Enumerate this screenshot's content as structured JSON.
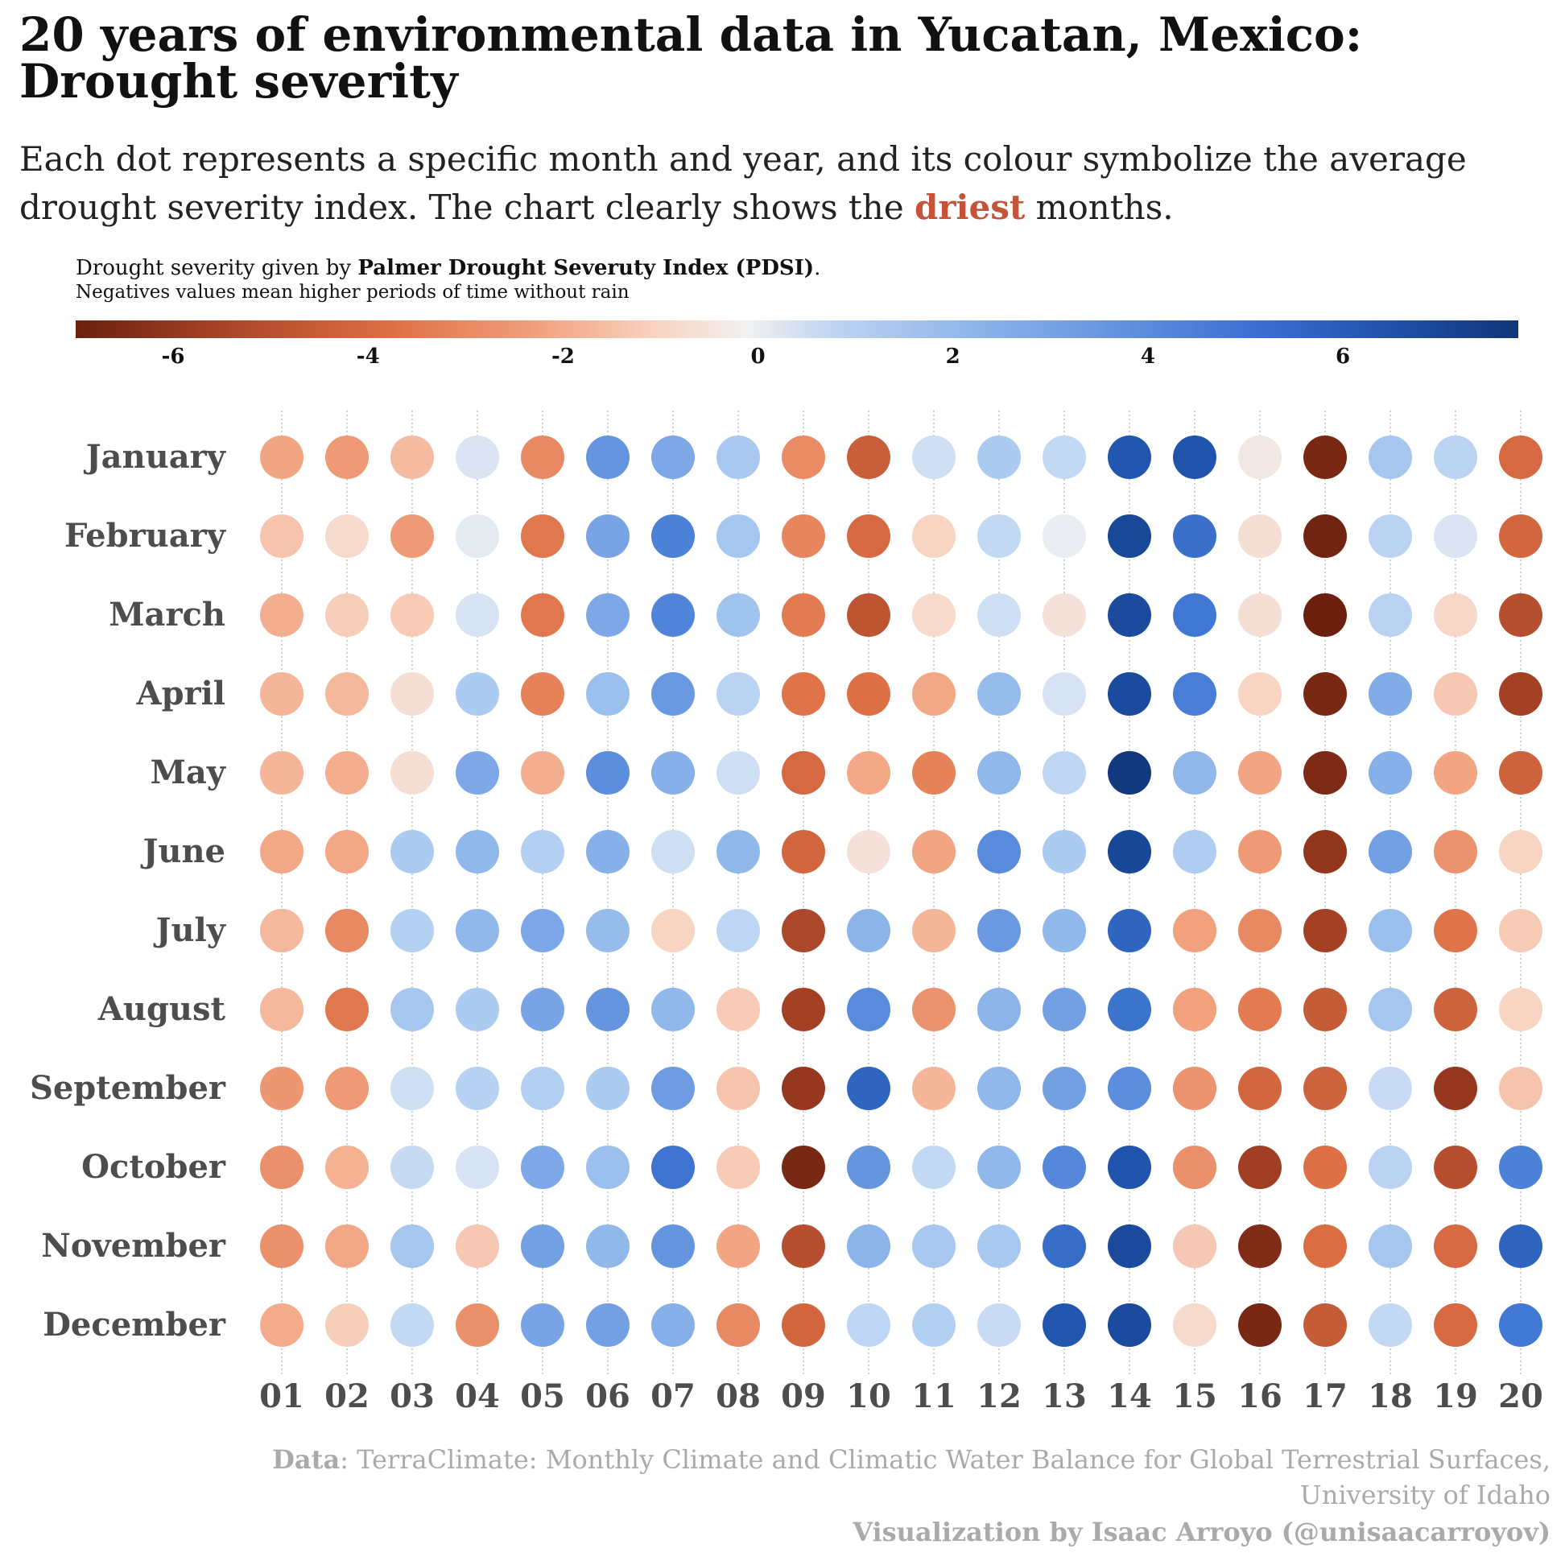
{
  "title_line1": "20 years of environmental data in Yucatan, Mexico:",
  "title_line2": "Drought severity",
  "subtitle_line1": "Each dot represents a specific month and year, and its colour symbolize the average",
  "subtitle_line2_pre": "drought severity index. The chart clearly shows the ",
  "subtitle_highlight": "driest",
  "subtitle_line2_post": " months.",
  "legend": {
    "title_pre": "Drought severity given by ",
    "title_bold": "Palmer Drought Severuty Index (PDSI)",
    "title_post": ".",
    "subtitle": "Negatives values mean higher periods of time without rain",
    "ticks": [
      "-6",
      "-4",
      "-2",
      "0",
      "2",
      "4",
      "6"
    ],
    "tick_values": [
      -6,
      -4,
      -2,
      0,
      2,
      4,
      6
    ],
    "range": [
      -7,
      7.8
    ]
  },
  "source_label": "Data",
  "source_text": ": TerraClimate: Monthly Climate and Climatic Water Balance for Global Terrestrial Surfaces,",
  "source_line2": "University of Idaho",
  "credit": "Visualization by Isaac Arroyo (@unisaacarroyov)",
  "colors": {
    "dry_extreme": "#6b200f",
    "neutral": "#f1f1f1",
    "wet_extreme": "#10357a",
    "highlight": "#c4533a",
    "label_gray": "#4d4d4d",
    "source_gray": "#aaaaaa"
  },
  "chart_data": {
    "type": "heatmap",
    "x": [
      "01",
      "02",
      "03",
      "04",
      "05",
      "06",
      "07",
      "08",
      "09",
      "10",
      "11",
      "12",
      "13",
      "14",
      "15",
      "16",
      "17",
      "18",
      "19",
      "20"
    ],
    "y": [
      "January",
      "February",
      "March",
      "April",
      "May",
      "June",
      "July",
      "August",
      "September",
      "October",
      "November",
      "December"
    ],
    "value_label": "PDSI",
    "values": [
      [
        -2.5,
        -2.8,
        -1.8,
        0.8,
        -3.3,
        3.7,
        3.2,
        2.3,
        -3.2,
        -4.5,
        1.2,
        2.2,
        1.6,
        5.8,
        5.9,
        -0.3,
        -6.6,
        2.4,
        1.8,
        -4.2
      ],
      [
        -1.5,
        -0.8,
        -2.8,
        0.4,
        -3.8,
        3.3,
        4.3,
        2.4,
        -3.4,
        -4.2,
        -1.0,
        1.6,
        0.2,
        6.6,
        4.9,
        -0.6,
        -6.8,
        1.8,
        0.8,
        -4.3
      ],
      [
        -2.2,
        -1.2,
        -1.3,
        0.9,
        -3.8,
        3.2,
        4.2,
        2.5,
        -3.7,
        -4.8,
        -0.8,
        1.2,
        -0.5,
        6.5,
        4.6,
        -0.6,
        -7.0,
        1.8,
        -0.9,
        -5.0
      ],
      [
        -2.0,
        -1.9,
        -0.6,
        2.2,
        -3.5,
        2.6,
        3.6,
        1.8,
        -3.9,
        -4.0,
        -2.4,
        2.7,
        0.9,
        6.5,
        4.4,
        -1.0,
        -6.6,
        3.1,
        -1.4,
        -5.4
      ],
      [
        -2.0,
        -2.2,
        -0.6,
        3.2,
        -2.2,
        3.9,
        3.0,
        1.2,
        -4.2,
        -2.4,
        -3.5,
        2.8,
        1.7,
        7.6,
        2.8,
        -2.5,
        -6.5,
        3.0,
        -2.5,
        -4.4
      ],
      [
        -2.4,
        -2.4,
        2.2,
        2.8,
        2.0,
        3.0,
        1.2,
        2.8,
        -4.3,
        -0.5,
        -2.5,
        4.0,
        2.2,
        6.7,
        2.1,
        -2.8,
        -5.9,
        3.4,
        -3.0,
        -1.0
      ],
      [
        -1.9,
        -3.3,
        2.0,
        2.8,
        3.2,
        2.7,
        -1.0,
        1.7,
        -5.2,
        2.9,
        -2.0,
        3.6,
        2.8,
        5.3,
        -2.6,
        -3.3,
        -5.4,
        2.6,
        -3.9,
        -1.3
      ],
      [
        -1.9,
        -3.8,
        2.4,
        2.2,
        3.3,
        3.7,
        2.8,
        -1.3,
        -5.4,
        4.0,
        -3.0,
        2.9,
        3.4,
        4.8,
        -2.6,
        -3.7,
        -4.6,
        2.4,
        -4.4,
        -1.0
      ],
      [
        -2.9,
        -2.8,
        1.2,
        1.9,
        2.0,
        2.2,
        3.5,
        -1.5,
        -5.8,
        5.3,
        -2.0,
        2.8,
        3.4,
        3.9,
        -3.0,
        -4.3,
        -4.4,
        1.4,
        -5.8,
        -1.5
      ],
      [
        -3.1,
        -2.1,
        1.5,
        0.9,
        3.2,
        2.6,
        4.7,
        -1.3,
        -6.6,
        3.7,
        1.6,
        2.8,
        4.1,
        5.9,
        -3.1,
        -5.5,
        -4.0,
        1.8,
        -5.0,
        4.3
      ],
      [
        -3.1,
        -2.4,
        2.4,
        -1.4,
        3.4,
        2.8,
        3.7,
        -2.5,
        -5.0,
        2.9,
        2.3,
        2.3,
        5.0,
        6.5,
        -1.4,
        -6.4,
        -4.1,
        2.4,
        -4.2,
        5.3
      ],
      [
        -2.3,
        -1.2,
        1.6,
        -3.1,
        3.3,
        3.4,
        3.0,
        -3.3,
        -4.3,
        1.7,
        2.0,
        1.4,
        5.8,
        6.5,
        -0.8,
        -6.6,
        -4.6,
        1.6,
        -4.2,
        4.6
      ]
    ]
  }
}
